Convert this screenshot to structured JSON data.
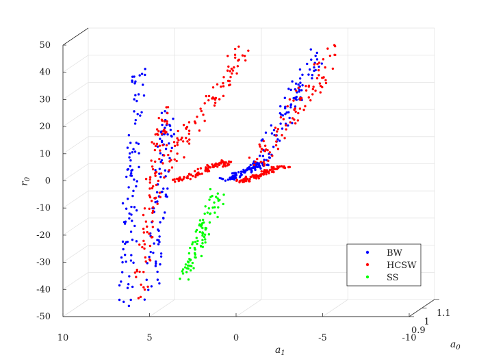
{
  "chart_data": {
    "type": "scatter",
    "title": "",
    "view": "3d",
    "grid": true,
    "legend_position": "bottom-right",
    "xlabel": "a_1",
    "ylabel": "r_0",
    "zlabel": "a_0",
    "x_ticks": [
      "10",
      "5",
      "0",
      "-5",
      "-10"
    ],
    "y_ticks": [
      "50",
      "40",
      "30",
      "20",
      "10",
      "0",
      "-10",
      "-20",
      "-30",
      "-40",
      "-50"
    ],
    "z_ticks": [
      "0.9",
      "1",
      "1.1"
    ],
    "xlim": [
      10,
      -10
    ],
    "ylim": [
      -50,
      50
    ],
    "zlim": [
      0.9,
      1.1
    ],
    "series": [
      {
        "name": "BW",
        "color": "#0000ff",
        "clusters": [
          {
            "x": [
              6.4,
              5.6
            ],
            "y": [
              -48,
              48
            ]
          },
          {
            "x": [
              4.9,
              3.9
            ],
            "y": [
              -47,
              33
            ]
          },
          {
            "x": [
              -1.3,
              -4.6
            ],
            "y": [
              1,
              50
            ]
          },
          {
            "x": [
              0.6,
              -1.6
            ],
            "y": [
              0,
              7
            ]
          }
        ]
      },
      {
        "name": "HCSW",
        "color": "#ff0000",
        "clusters": [
          {
            "x": [
              5.6,
              4.2
            ],
            "y": [
              -48,
              32
            ]
          },
          {
            "x": [
              4.5,
              -0.5
            ],
            "y": [
              -2,
              52
            ]
          },
          {
            "x": [
              3.5,
              0.4
            ],
            "y": [
              -1,
              8
            ]
          },
          {
            "x": [
              -0.8,
              -5.8
            ],
            "y": [
              -1,
              52
            ]
          },
          {
            "x": [
              -0.2,
              -2.8
            ],
            "y": [
              -1,
              6
            ]
          }
        ]
      },
      {
        "name": "SS",
        "color": "#00ff00",
        "clusters": [
          {
            "x": [
              3.0,
              1.0
            ],
            "y": [
              -38,
              -1
            ]
          }
        ]
      }
    ]
  }
}
